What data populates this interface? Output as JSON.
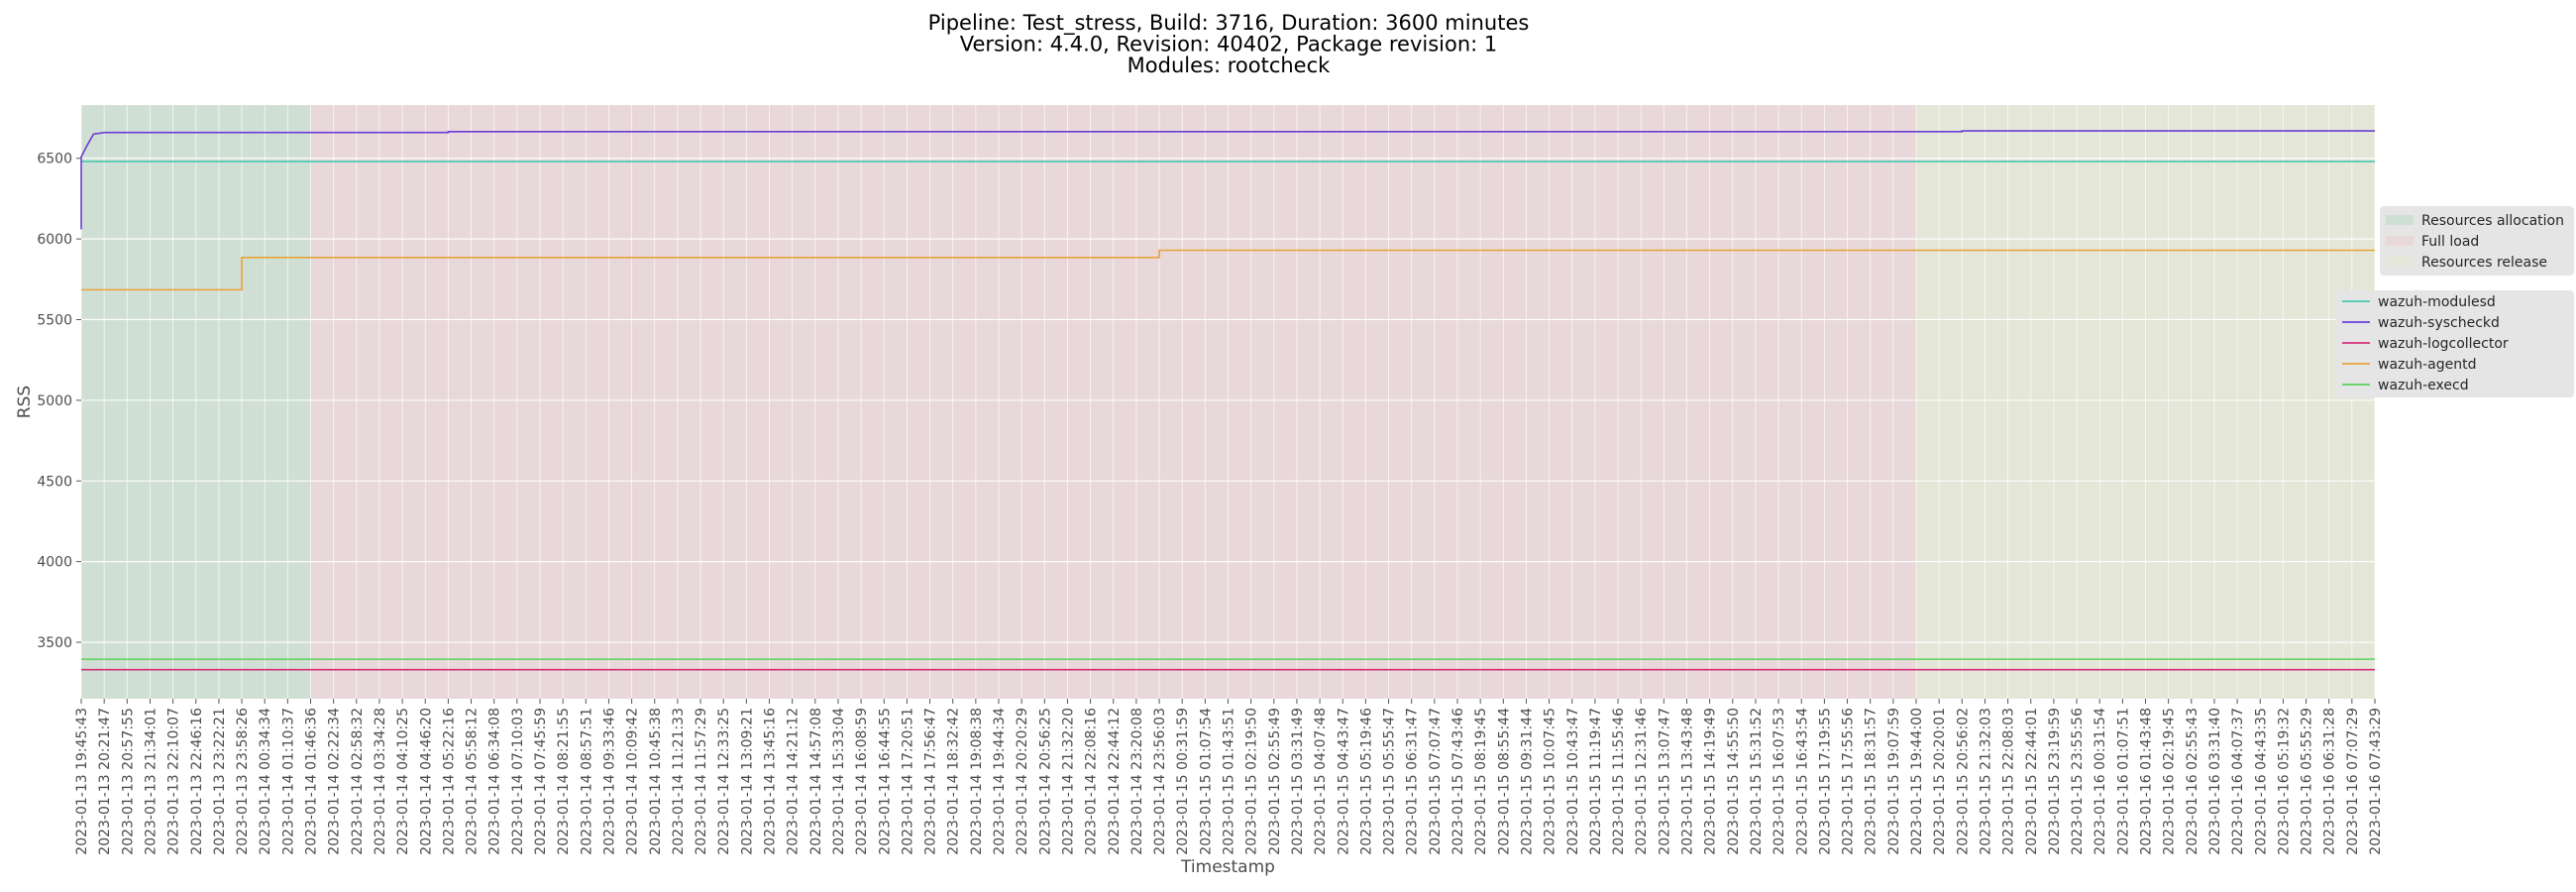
{
  "chart_data": {
    "type": "line",
    "title": "Pipeline: Test_stress, Build: 3716, Duration: 3600 minutes\nVersion: 4.4.0, Revision: 40402, Package revision: 1\nModules: rootcheck",
    "xlabel": "Timestamp",
    "ylabel": "RSS",
    "ylim": [
      3150,
      6830
    ],
    "y_ticks": [
      3500,
      4000,
      4500,
      5000,
      5500,
      6000,
      6500
    ],
    "grid": true,
    "legend_position": "right",
    "x_ticks": [
      "2023-01-13 19:45:43",
      "2023-01-13 20:21:47",
      "2023-01-13 20:57:55",
      "2023-01-13 21:34:01",
      "2023-01-13 22:10:07",
      "2023-01-13 22:46:16",
      "2023-01-13 23:22:21",
      "2023-01-13 23:58:26",
      "2023-01-14 00:34:34",
      "2023-01-14 01:10:37",
      "2023-01-14 01:46:36",
      "2023-01-14 02:22:34",
      "2023-01-14 02:58:32",
      "2023-01-14 03:34:28",
      "2023-01-14 04:10:25",
      "2023-01-14 04:46:20",
      "2023-01-14 05:22:16",
      "2023-01-14 05:58:12",
      "2023-01-14 06:34:08",
      "2023-01-14 07:10:03",
      "2023-01-14 07:45:59",
      "2023-01-14 08:21:55",
      "2023-01-14 08:57:51",
      "2023-01-14 09:33:46",
      "2023-01-14 10:09:42",
      "2023-01-14 10:45:38",
      "2023-01-14 11:21:33",
      "2023-01-14 11:57:29",
      "2023-01-14 12:33:25",
      "2023-01-14 13:09:21",
      "2023-01-14 13:45:16",
      "2023-01-14 14:21:12",
      "2023-01-14 14:57:08",
      "2023-01-14 15:33:04",
      "2023-01-14 16:08:59",
      "2023-01-14 16:44:55",
      "2023-01-14 17:20:51",
      "2023-01-14 17:56:47",
      "2023-01-14 18:32:42",
      "2023-01-14 19:08:38",
      "2023-01-14 19:44:34",
      "2023-01-14 20:20:29",
      "2023-01-14 20:56:25",
      "2023-01-14 21:32:20",
      "2023-01-14 22:08:16",
      "2023-01-14 22:44:12",
      "2023-01-14 23:20:08",
      "2023-01-14 23:56:03",
      "2023-01-15 00:31:59",
      "2023-01-15 01:07:54",
      "2023-01-15 01:43:51",
      "2023-01-15 02:19:50",
      "2023-01-15 02:55:49",
      "2023-01-15 03:31:49",
      "2023-01-15 04:07:48",
      "2023-01-15 04:43:47",
      "2023-01-15 05:19:46",
      "2023-01-15 05:55:47",
      "2023-01-15 06:31:47",
      "2023-01-15 07:07:47",
      "2023-01-15 07:43:46",
      "2023-01-15 08:19:45",
      "2023-01-15 08:55:44",
      "2023-01-15 09:31:44",
      "2023-01-15 10:07:45",
      "2023-01-15 10:43:47",
      "2023-01-15 11:19:47",
      "2023-01-15 11:55:46",
      "2023-01-15 12:31:46",
      "2023-01-15 13:07:47",
      "2023-01-15 13:43:48",
      "2023-01-15 14:19:49",
      "2023-01-15 14:55:50",
      "2023-01-15 15:31:52",
      "2023-01-15 16:07:53",
      "2023-01-15 16:43:54",
      "2023-01-15 17:19:55",
      "2023-01-15 17:55:56",
      "2023-01-15 18:31:57",
      "2023-01-15 19:07:59",
      "2023-01-15 19:44:00",
      "2023-01-15 20:20:01",
      "2023-01-15 20:56:02",
      "2023-01-15 21:32:03",
      "2023-01-15 22:08:03",
      "2023-01-15 22:44:01",
      "2023-01-15 23:19:59",
      "2023-01-15 23:55:56",
      "2023-01-16 00:31:54",
      "2023-01-16 01:07:51",
      "2023-01-16 01:43:48",
      "2023-01-16 02:19:45",
      "2023-01-16 02:55:43",
      "2023-01-16 03:31:40",
      "2023-01-16 04:07:37",
      "2023-01-16 04:43:35",
      "2023-01-16 05:19:32",
      "2023-01-16 05:55:29",
      "2023-01-16 06:31:28",
      "2023-01-16 07:07:29",
      "2023-01-16 07:43:29"
    ],
    "phases": [
      {
        "name": "Resources allocation",
        "start": "2023-01-13 19:45:43",
        "end": "2023-01-14 01:46:36",
        "color": "#d0dfd4"
      },
      {
        "name": "Full load",
        "start": "2023-01-14 01:46:36",
        "end": "2023-01-15 19:44:00",
        "color": "#e8d8da"
      },
      {
        "name": "Resources release",
        "start": "2023-01-15 19:44:00",
        "end": "2023-01-16 07:43:29",
        "color": "#e4e6d8"
      }
    ],
    "series": [
      {
        "name": "wazuh-modulesd",
        "color": "#48c9b0",
        "points": [
          [
            "2023-01-13 19:45:43",
            6480
          ],
          [
            "2023-01-16 07:43:29",
            6480
          ]
        ]
      },
      {
        "name": "wazuh-syscheckd",
        "color": "#6a3fd6",
        "points": [
          [
            "2023-01-13 19:45:43",
            6060
          ],
          [
            "2023-01-13 19:45:43",
            6510
          ],
          [
            "2023-01-13 19:55:00",
            6580
          ],
          [
            "2023-01-13 20:05:00",
            6650
          ],
          [
            "2023-01-13 20:21:47",
            6660
          ],
          [
            "2023-01-14 05:22:16",
            6660
          ],
          [
            "2023-01-14 05:22:16",
            6665
          ],
          [
            "2023-01-15 20:56:02",
            6665
          ],
          [
            "2023-01-15 20:56:02",
            6670
          ],
          [
            "2023-01-16 07:43:29",
            6670
          ]
        ]
      },
      {
        "name": "wazuh-logcollector",
        "color": "#d62f7a",
        "points": [
          [
            "2023-01-13 19:45:43",
            3330
          ],
          [
            "2023-01-16 07:43:29",
            3330
          ]
        ]
      },
      {
        "name": "wazuh-agentd",
        "color": "#e8a33a",
        "points": [
          [
            "2023-01-13 19:45:43",
            5685
          ],
          [
            "2023-01-13 23:58:26",
            5685
          ],
          [
            "2023-01-13 23:58:26",
            5885
          ],
          [
            "2023-01-14 23:56:03",
            5885
          ],
          [
            "2023-01-14 23:56:03",
            5930
          ],
          [
            "2023-01-16 07:43:29",
            5930
          ]
        ]
      },
      {
        "name": "wazuh-execd",
        "color": "#5bd35b",
        "points": [
          [
            "2023-01-13 19:45:43",
            3395
          ],
          [
            "2023-01-16 07:43:29",
            3395
          ]
        ]
      }
    ]
  },
  "colors": {
    "plot_background": "#e5e5e5",
    "grid": "#ffffff",
    "legend_background": "#e5e5e5",
    "text": "#4d4d4d"
  }
}
